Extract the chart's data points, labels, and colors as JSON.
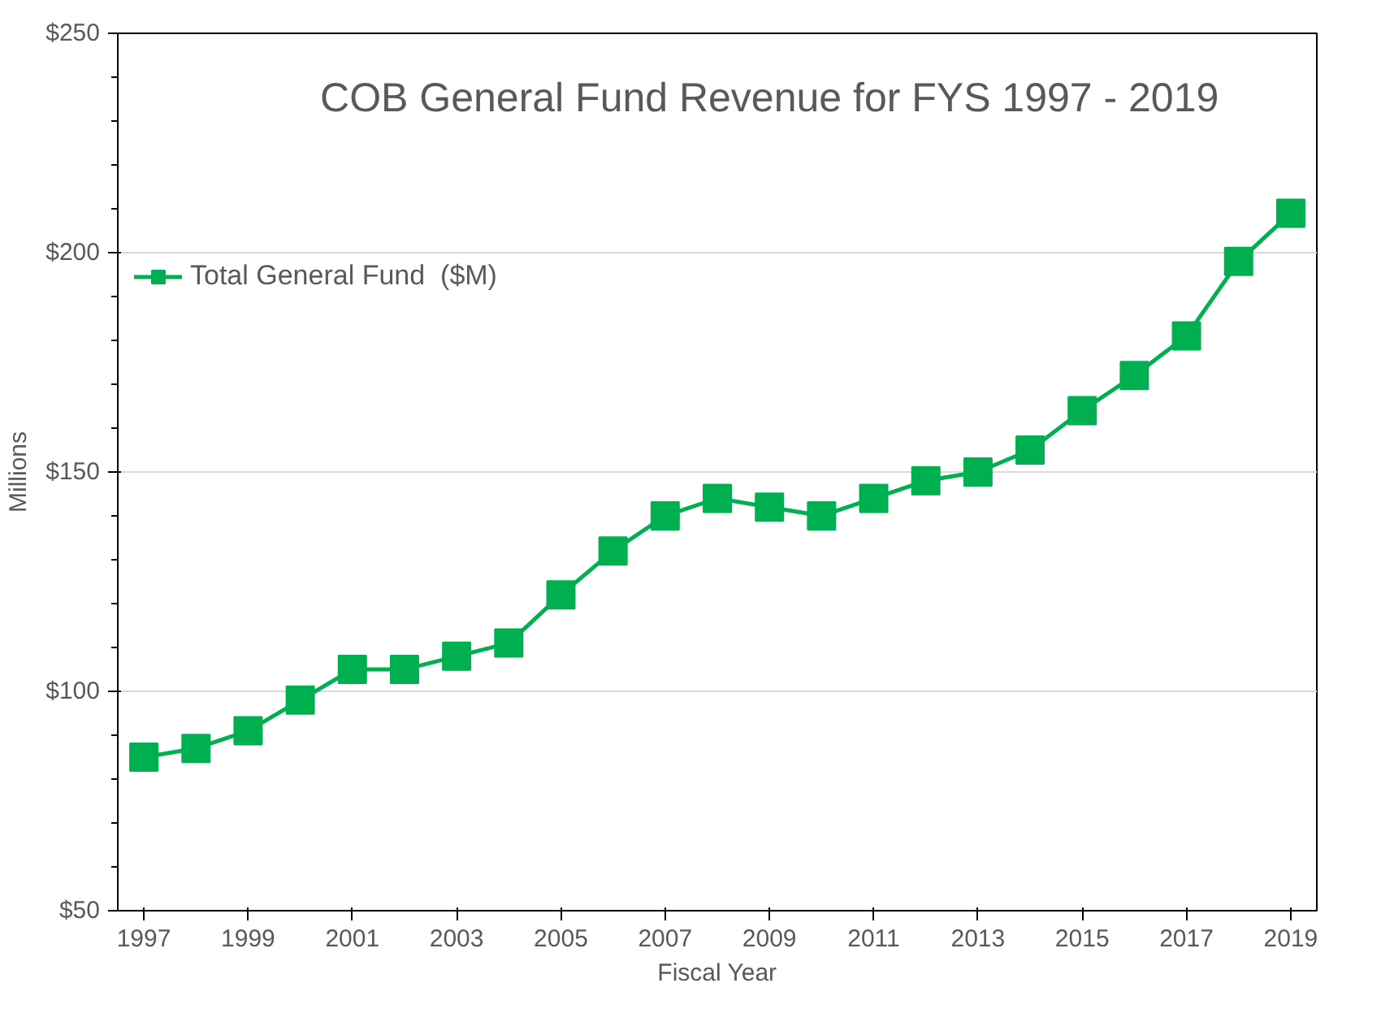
{
  "chart_data": {
    "type": "line",
    "title": "COB General Fund Revenue for FYS 1997 - 2019",
    "xlabel": "Fiscal Year",
    "ylabel": "Millions",
    "categories": [
      "1997",
      null,
      "1999",
      null,
      "2001",
      null,
      "2003",
      null,
      "2005",
      null,
      "2007",
      null,
      "2009",
      null,
      "2011",
      null,
      "2013",
      null,
      "2015",
      null,
      "2017",
      null,
      "2019"
    ],
    "series": [
      {
        "name": "Total General Fund  ($M)",
        "color": "#00b050",
        "values": [
          85,
          87,
          91,
          98,
          105,
          105,
          108,
          111,
          122,
          132,
          140,
          144,
          142,
          140,
          144,
          148,
          150,
          155,
          164,
          172,
          181,
          198,
          209
        ]
      }
    ],
    "ylim": [
      50,
      250
    ],
    "yticks": [
      {
        "value": 50,
        "label": "$50"
      },
      {
        "value": 100,
        "label": "$100"
      },
      {
        "value": 150,
        "label": "$150"
      },
      {
        "value": 200,
        "label": "$200"
      },
      {
        "value": 250,
        "label": "$250"
      }
    ],
    "grid": "y",
    "legend": "top left",
    "marker": "square",
    "line_style": "solid"
  }
}
